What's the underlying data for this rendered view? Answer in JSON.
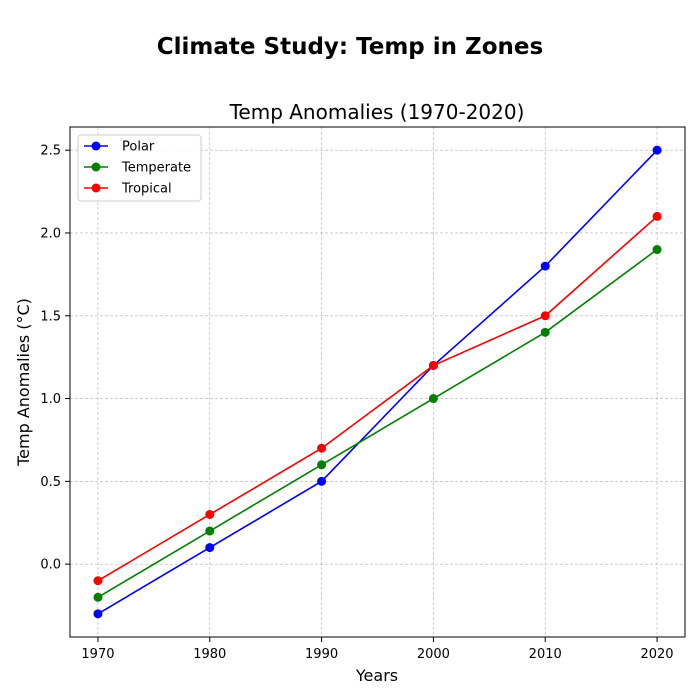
{
  "figure": {
    "suptitle": "Climate Study: Temp in Zones"
  },
  "chart_data": {
    "type": "line",
    "title": "Temp Anomalies (1970-2020)",
    "xlabel": "Years",
    "ylabel": "Temp Anomalies (°C)",
    "x": [
      1970,
      1980,
      1990,
      2000,
      2010,
      2020
    ],
    "xticks": [
      "1970",
      "1980",
      "1990",
      "2000",
      "2010",
      "2020"
    ],
    "yticks": [
      "0.0",
      "0.5",
      "1.0",
      "1.5",
      "2.0",
      "2.5"
    ],
    "xlim": [
      1967.5,
      2022.5
    ],
    "ylim": [
      -0.44,
      2.64
    ],
    "grid": true,
    "legend_position": "upper-left",
    "series": [
      {
        "name": "Polar",
        "color": "#0000ff",
        "values": [
          -0.3,
          0.1,
          0.5,
          1.2,
          1.8,
          2.5
        ]
      },
      {
        "name": "Temperate",
        "color": "#008000",
        "values": [
          -0.2,
          0.2,
          0.6,
          1.0,
          1.4,
          1.9
        ]
      },
      {
        "name": "Tropical",
        "color": "#ff0000",
        "values": [
          -0.1,
          0.3,
          0.7,
          1.2,
          1.5,
          2.1
        ]
      }
    ]
  }
}
